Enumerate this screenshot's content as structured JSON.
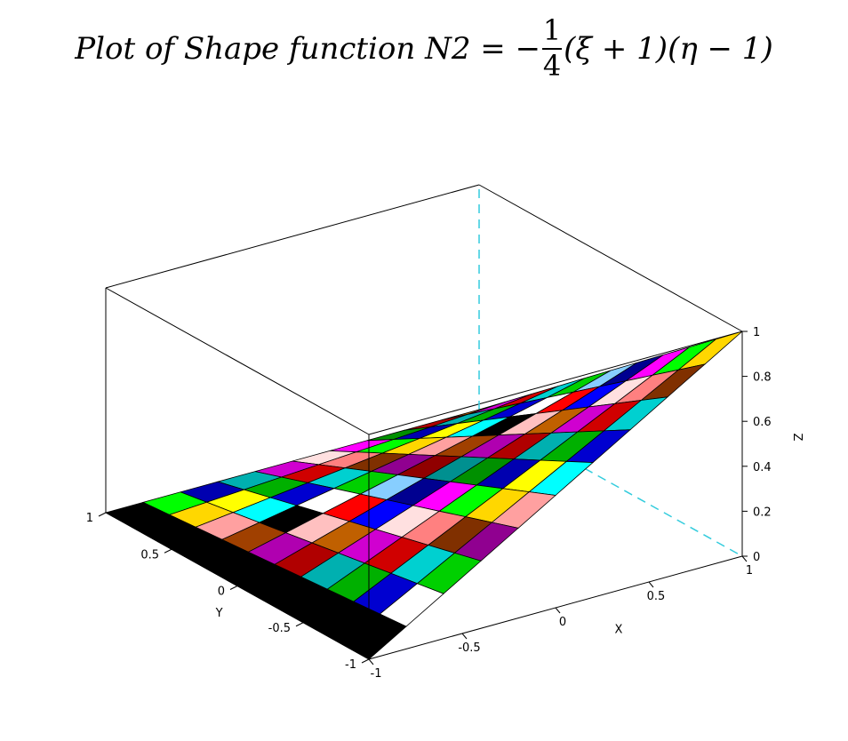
{
  "title": {
    "prefix": "Plot of Shape function N2 = −",
    "frac_num": "1",
    "frac_den": "4",
    "suffix": "(ξ + 1)(η − 1)"
  },
  "chart_data": {
    "type": "surface",
    "function": "-1/4 (x + 1)(y - 1)",
    "grid": 10,
    "xlim": [
      -1,
      1
    ],
    "ylim": [
      -1,
      1
    ],
    "zlim": [
      0,
      1
    ],
    "xlabel": "X",
    "ylabel": "Y",
    "zlabel": "Z",
    "x_ticks": [
      "-1",
      "-0.5",
      "0",
      "0.5",
      "1"
    ],
    "y_ticks": [
      "-1",
      "-0.5",
      "0",
      "0.5",
      "1"
    ],
    "z_ticks": [
      "0",
      "0.2",
      "0.4",
      "0.6",
      "0.8",
      "1"
    ],
    "colors": [
      "#000000",
      "#0000ff",
      "#00ff00",
      "#00ffff",
      "#ff0000",
      "#ff00ff",
      "#ffff00",
      "#ffffff",
      "#000090",
      "#0000b0",
      "#0000d0",
      "#87ceff",
      "#009000",
      "#00b000",
      "#00d000",
      "#009090",
      "#00b0b0",
      "#00d0d0",
      "#900000",
      "#b00000",
      "#d00000",
      "#900090",
      "#b000b0",
      "#d000d0",
      "#803000",
      "#a04000",
      "#c06000",
      "#ff8080",
      "#ffa0a0",
      "#ffc0c0",
      "#ffe0e0",
      "#ffd700"
    ]
  }
}
